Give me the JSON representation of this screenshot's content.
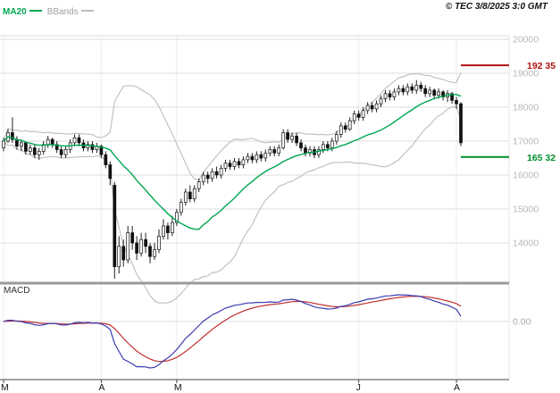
{
  "header": {
    "copyright": "© TEC 3/8/2025 3:0 GMT"
  },
  "legend": {
    "ma20": {
      "label": "MA20",
      "color": "#00a651"
    },
    "bbands": {
      "label": "BBands",
      "color": "#bdbdbd"
    }
  },
  "chart_data": {
    "type": "candlestick",
    "title": "",
    "x_axis": {
      "tick_labels": [
        "M",
        "A",
        "M",
        "J",
        "A"
      ],
      "tick_indices": [
        0,
        22,
        39,
        80,
        102
      ]
    },
    "y_axis": {
      "ticks": [
        20000,
        19000,
        18000,
        17000,
        16000,
        15000,
        14000
      ],
      "range": [
        12900,
        20100
      ]
    },
    "levels": {
      "resistance": {
        "value": 19235,
        "label": "192 35",
        "color": "#b01111"
      },
      "support": {
        "value": 16532,
        "label": "165 32",
        "color": "#008f2e"
      }
    },
    "overlays": {
      "ma20": {
        "period": 20,
        "color": "#00a651"
      },
      "bbands": {
        "period": 20,
        "stddev": 2,
        "color": "#bdbdbd"
      }
    },
    "macd": {
      "label": "MACD",
      "fast": 12,
      "slow": 26,
      "signal": 9,
      "macd_color": "#3a3ab0",
      "signal_color": "#c03030",
      "zero_label": "0.00"
    },
    "candles": [
      [
        16800,
        17100,
        16700,
        17000
      ],
      [
        17000,
        17350,
        16950,
        17250
      ],
      [
        17250,
        17700,
        16950,
        17050
      ],
      [
        17050,
        17150,
        16750,
        16850
      ],
      [
        16850,
        17050,
        16700,
        16950
      ],
      [
        16950,
        17000,
        16600,
        16700
      ],
      [
        16700,
        16900,
        16600,
        16800
      ],
      [
        16800,
        16900,
        16500,
        16600
      ],
      [
        16600,
        16800,
        16450,
        16700
      ],
      [
        16700,
        17000,
        16600,
        16900
      ],
      [
        16900,
        17150,
        16800,
        17050
      ],
      [
        17050,
        17100,
        16800,
        16900
      ],
      [
        16900,
        17000,
        16650,
        16750
      ],
      [
        16750,
        16850,
        16500,
        16600
      ],
      [
        16600,
        16850,
        16500,
        16750
      ],
      [
        16750,
        17050,
        16650,
        16950
      ],
      [
        16950,
        17200,
        16850,
        17100
      ],
      [
        17100,
        17200,
        16850,
        16950
      ],
      [
        16950,
        17050,
        16700,
        16800
      ],
      [
        16800,
        17000,
        16700,
        16900
      ],
      [
        16900,
        17000,
        16650,
        16750
      ],
      [
        16750,
        16950,
        16650,
        16850
      ],
      [
        16850,
        16900,
        16500,
        16600
      ],
      [
        16600,
        16700,
        16200,
        16300
      ],
      [
        16300,
        16400,
        15700,
        15900
      ],
      [
        15700,
        15800,
        12950,
        13300
      ],
      [
        13300,
        14200,
        13100,
        13900
      ],
      [
        13900,
        14100,
        13300,
        13500
      ],
      [
        13500,
        14500,
        13400,
        14300
      ],
      [
        14300,
        14500,
        13800,
        14000
      ],
      [
        14000,
        14200,
        13500,
        13700
      ],
      [
        13700,
        14300,
        13600,
        14100
      ],
      [
        14100,
        14300,
        13700,
        13900
      ],
      [
        13900,
        14000,
        13400,
        13600
      ],
      [
        13600,
        14000,
        13500,
        13800
      ],
      [
        13800,
        14400,
        13700,
        14200
      ],
      [
        14200,
        14700,
        14100,
        14500
      ],
      [
        14500,
        14600,
        14100,
        14300
      ],
      [
        14300,
        14800,
        14200,
        14600
      ],
      [
        14600,
        15000,
        14500,
        14900
      ],
      [
        14900,
        15300,
        14800,
        15200
      ],
      [
        15200,
        15600,
        15100,
        15500
      ],
      [
        15500,
        15700,
        15200,
        15300
      ],
      [
        15300,
        15700,
        15200,
        15600
      ],
      [
        15600,
        15900,
        15500,
        15800
      ],
      [
        15800,
        16100,
        15700,
        16000
      ],
      [
        16000,
        16100,
        15750,
        15900
      ],
      [
        15900,
        16200,
        15800,
        16100
      ],
      [
        16100,
        16250,
        15900,
        16000
      ],
      [
        16000,
        16300,
        15900,
        16200
      ],
      [
        16200,
        16450,
        16100,
        16350
      ],
      [
        16350,
        16450,
        16150,
        16250
      ],
      [
        16250,
        16500,
        16150,
        16400
      ],
      [
        16400,
        16500,
        16200,
        16300
      ],
      [
        16300,
        16550,
        16200,
        16450
      ],
      [
        16450,
        16650,
        16350,
        16550
      ],
      [
        16550,
        16650,
        16350,
        16450
      ],
      [
        16450,
        16700,
        16350,
        16600
      ],
      [
        16600,
        16700,
        16400,
        16500
      ],
      [
        16500,
        16750,
        16400,
        16650
      ],
      [
        16650,
        16850,
        16550,
        16750
      ],
      [
        16750,
        16850,
        16550,
        16650
      ],
      [
        16650,
        16900,
        16550,
        16800
      ],
      [
        16800,
        17350,
        16750,
        17250
      ],
      [
        17250,
        17350,
        16950,
        17050
      ],
      [
        17050,
        17250,
        16950,
        17150
      ],
      [
        17150,
        17250,
        16850,
        16950
      ],
      [
        16950,
        17050,
        16700,
        16800
      ],
      [
        16800,
        16900,
        16550,
        16650
      ],
      [
        16650,
        16850,
        16550,
        16750
      ],
      [
        16750,
        16850,
        16500,
        16600
      ],
      [
        16600,
        16850,
        16500,
        16750
      ],
      [
        16750,
        17000,
        16650,
        16900
      ],
      [
        16900,
        17000,
        16700,
        16800
      ],
      [
        16800,
        17100,
        16700,
        17000
      ],
      [
        17000,
        17300,
        16900,
        17200
      ],
      [
        17200,
        17550,
        17100,
        17450
      ],
      [
        17450,
        17550,
        17250,
        17350
      ],
      [
        17350,
        17700,
        17300,
        17600
      ],
      [
        17600,
        17900,
        17500,
        17800
      ],
      [
        17800,
        17900,
        17600,
        17700
      ],
      [
        17700,
        18000,
        17600,
        17900
      ],
      [
        17900,
        18150,
        17800,
        18050
      ],
      [
        18050,
        18150,
        17850,
        17950
      ],
      [
        17950,
        18200,
        17850,
        18100
      ],
      [
        18100,
        18350,
        18000,
        18250
      ],
      [
        18250,
        18500,
        18150,
        18400
      ],
      [
        18400,
        18500,
        18200,
        18300
      ],
      [
        18300,
        18550,
        18200,
        18450
      ],
      [
        18450,
        18650,
        18350,
        18550
      ],
      [
        18550,
        18650,
        18350,
        18450
      ],
      [
        18450,
        18700,
        18350,
        18600
      ],
      [
        18600,
        18700,
        18400,
        18500
      ],
      [
        18500,
        18800,
        18400,
        18650
      ],
      [
        18650,
        18750,
        18450,
        18550
      ],
      [
        18550,
        18650,
        18300,
        18400
      ],
      [
        18400,
        18600,
        18300,
        18500
      ],
      [
        18500,
        18550,
        18250,
        18350
      ],
      [
        18350,
        18550,
        18250,
        18450
      ],
      [
        18450,
        18500,
        18200,
        18300
      ],
      [
        18300,
        18500,
        18150,
        18400
      ],
      [
        18400,
        18450,
        18100,
        18200
      ],
      [
        18200,
        18300,
        17950,
        18100
      ],
      [
        18100,
        18150,
        16850,
        16950
      ]
    ]
  }
}
